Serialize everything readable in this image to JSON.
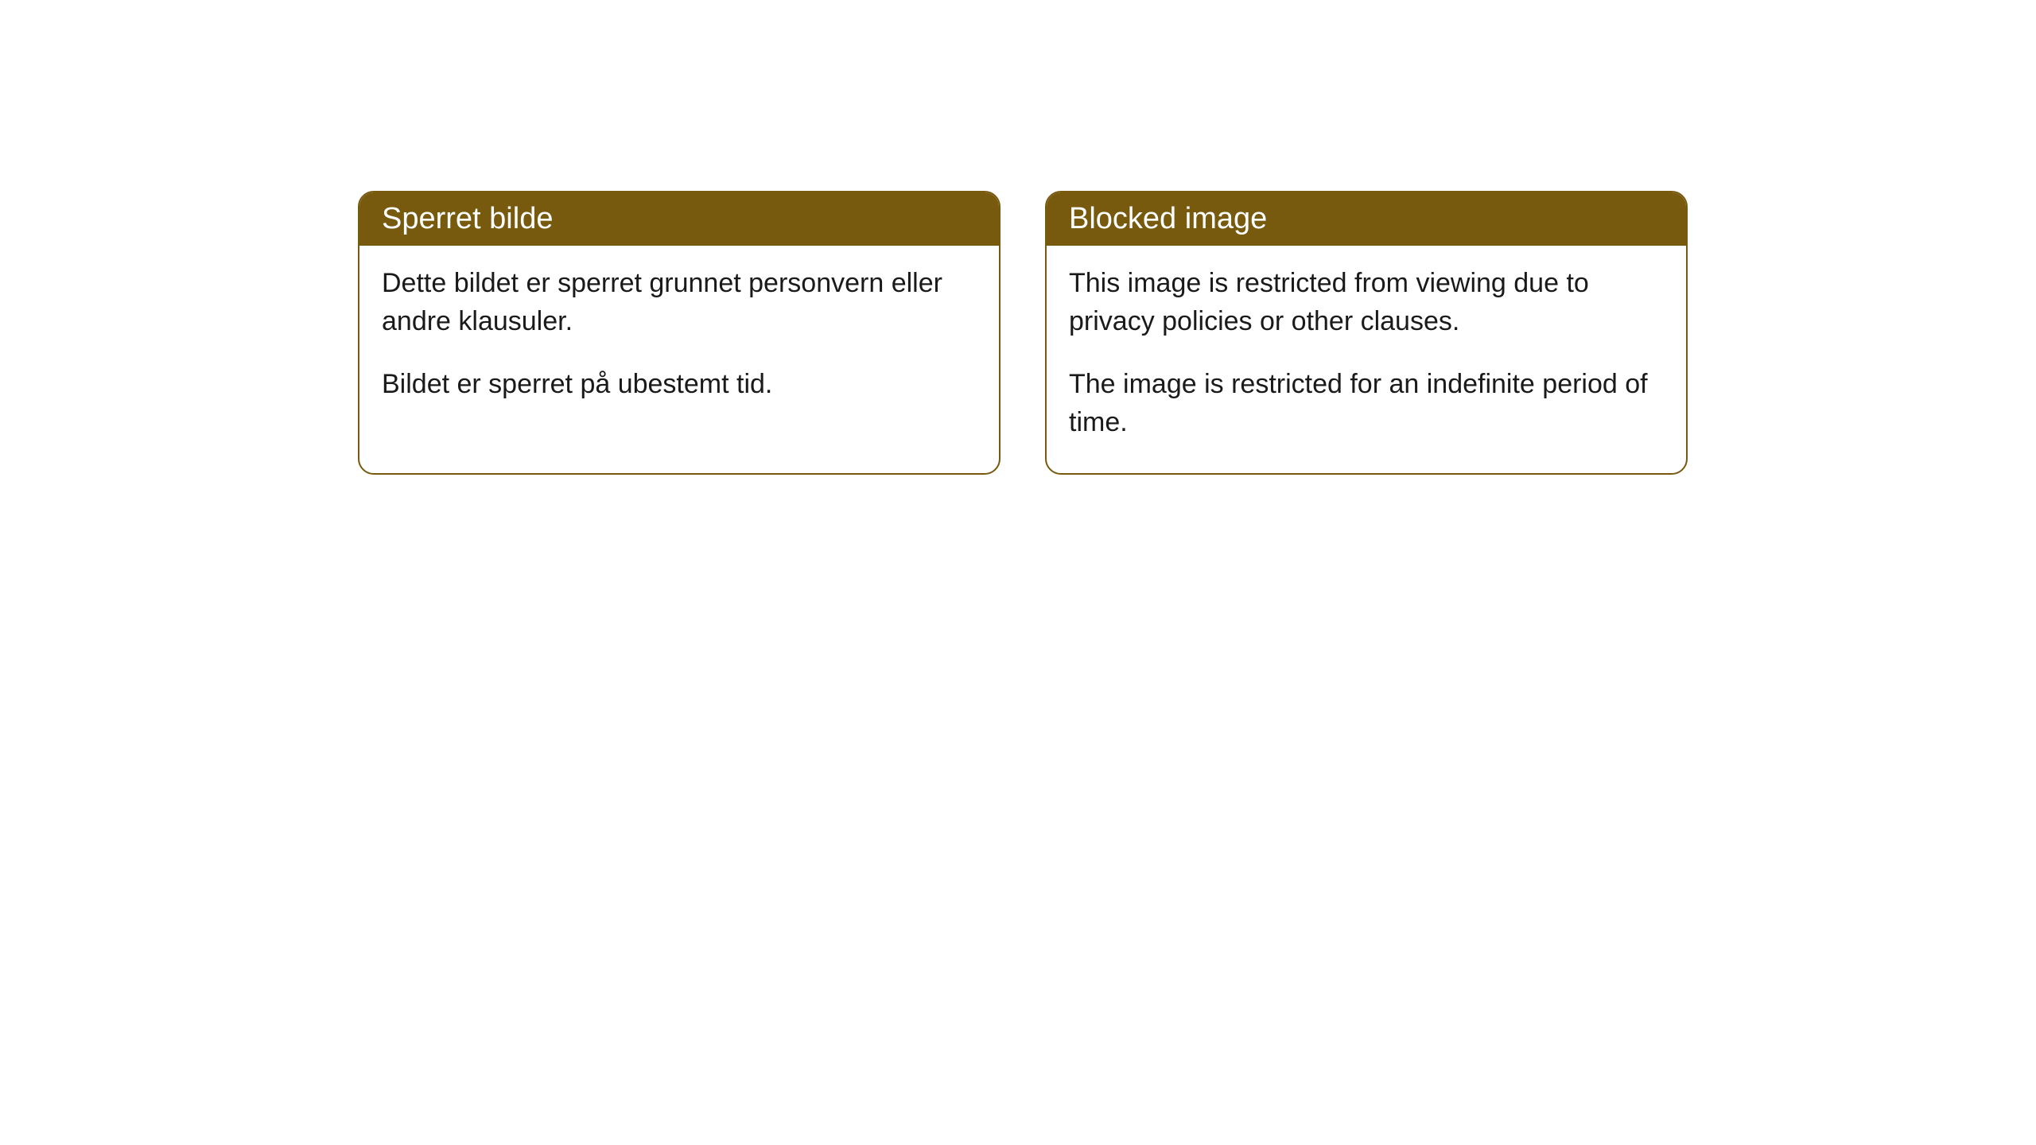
{
  "cards": [
    {
      "title": "Sperret bilde",
      "paragraph1": "Dette bildet er sperret grunnet personvern eller andre klausuler.",
      "paragraph2": "Bildet er sperret på ubestemt tid."
    },
    {
      "title": "Blocked image",
      "paragraph1": "This image is restricted from viewing due to privacy policies or other clauses.",
      "paragraph2": "The image is restricted for an indefinite period of time."
    }
  ],
  "styling": {
    "card_border_color": "#785a0f",
    "card_header_bg": "#785a0f",
    "card_header_text_color": "#ffffff",
    "card_body_bg": "#ffffff",
    "card_body_text_color": "#1a1a1a",
    "border_radius": 20,
    "header_fontsize": 38,
    "body_fontsize": 34
  }
}
